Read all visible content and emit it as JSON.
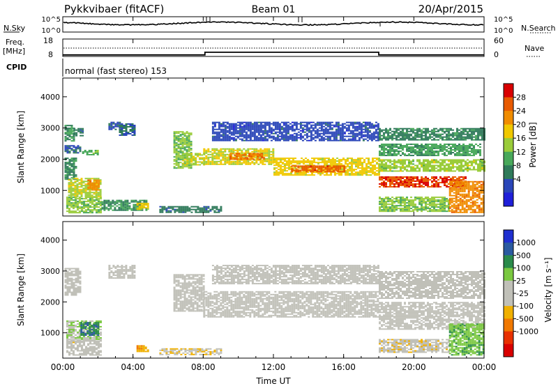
{
  "header": {
    "title": "Pykkvibaer (fitACF)",
    "beam": "Beam 01",
    "date": "20/Apr/2015"
  },
  "noise_panel": {
    "left_label": "N.Sky",
    "right_label": "N.Search",
    "left_ticks": [
      "10^5",
      "10^0"
    ],
    "right_ticks": [
      "10^5",
      "10^0"
    ]
  },
  "freq_panel": {
    "left_label": "Freq.",
    "left_unit": "[MHz]",
    "left_ticks": [
      "18",
      "8"
    ],
    "right_label": "Nave",
    "right_ticks": [
      "60",
      "0"
    ],
    "freq_steps": [
      {
        "t": 0,
        "f": 10.5
      },
      {
        "t": 8.1,
        "f": 12.0
      },
      {
        "t": 18.0,
        "f": 10.5
      }
    ]
  },
  "cpid": {
    "label": "CPID",
    "program": "normal (fast stereo) 153"
  },
  "colors": {
    "power": [
      "#1f1fd9",
      "#2a46b8",
      "#2f7a5a",
      "#48a85a",
      "#9acc3a",
      "#f0c800",
      "#f08c00",
      "#e85a00",
      "#d90000"
    ],
    "velocity": [
      "#1f2fd0",
      "#2a5aa0",
      "#2a8a4a",
      "#7ac840",
      "#c0c0b8",
      "#c0c0b8",
      "#f0b000",
      "#f07800",
      "#e83000",
      "#d90000"
    ]
  },
  "x_axis": {
    "label": "Time UT",
    "ticks": [
      "00:00",
      "04:00",
      "08:00",
      "12:00",
      "16:00",
      "20:00",
      "00:00"
    ]
  },
  "chart_data": [
    {
      "type": "heatmap",
      "title": "Power",
      "ylabel": "Slant Range [km]",
      "xlim": [
        0,
        24
      ],
      "ylim": [
        180,
        4600
      ],
      "y_ticks": [
        "4000",
        "3000",
        "2000",
        "1000"
      ],
      "colorbar": {
        "label": "Power [dB]",
        "ticks": [
          "28",
          "24",
          "20",
          "16",
          "12",
          "8",
          "4"
        ],
        "range": [
          0,
          30
        ]
      },
      "regions": [
        {
          "t0": 0.1,
          "t1": 0.6,
          "r0": 2600,
          "r1": 3100,
          "value": 10
        },
        {
          "t0": 0.6,
          "t1": 1.1,
          "r0": 2750,
          "r1": 3000,
          "value": 8
        },
        {
          "t0": 1.1,
          "t1": 2.0,
          "r0": 2150,
          "r1": 2300,
          "value": 12
        },
        {
          "t0": 0.1,
          "t1": 1.0,
          "r0": 2200,
          "r1": 2450,
          "value": 6
        },
        {
          "t0": 0.1,
          "t1": 0.7,
          "r0": 1350,
          "r1": 2050,
          "value": 9
        },
        {
          "t0": 0.3,
          "t1": 2.2,
          "r0": 800,
          "r1": 1400,
          "value": 16
        },
        {
          "t0": 1.4,
          "t1": 2.0,
          "r0": 1000,
          "r1": 1350,
          "value": 22
        },
        {
          "t0": 0.2,
          "t1": 2.2,
          "r0": 300,
          "r1": 800,
          "value": 14
        },
        {
          "t0": 2.6,
          "t1": 3.2,
          "r0": 2950,
          "r1": 3200,
          "value": 6
        },
        {
          "t0": 3.2,
          "t1": 4.1,
          "r0": 2750,
          "r1": 3150,
          "value": 7
        },
        {
          "t0": 2.2,
          "t1": 4.8,
          "r0": 350,
          "r1": 700,
          "value": 10
        },
        {
          "t0": 4.2,
          "t1": 4.8,
          "r0": 380,
          "r1": 600,
          "value": 18
        },
        {
          "t0": 6.3,
          "t1": 7.3,
          "r0": 1700,
          "r1": 2900,
          "value": 14
        },
        {
          "t0": 6.8,
          "t1": 8.0,
          "r0": 1800,
          "r1": 2200,
          "value": 16
        },
        {
          "t0": 8.0,
          "t1": 12.0,
          "r0": 1850,
          "r1": 2350,
          "value": 17
        },
        {
          "t0": 9.5,
          "t1": 11.5,
          "r0": 2000,
          "r1": 2200,
          "value": 23
        },
        {
          "t0": 12.0,
          "t1": 18.0,
          "r0": 1500,
          "r1": 2050,
          "value": 18
        },
        {
          "t0": 13.0,
          "t1": 16.0,
          "r0": 1600,
          "r1": 1800,
          "value": 25
        },
        {
          "t0": 5.5,
          "t1": 9.0,
          "r0": 300,
          "r1": 500,
          "value": 8
        },
        {
          "t0": 8.5,
          "t1": 18.0,
          "r0": 2600,
          "r1": 3200,
          "value": 5
        },
        {
          "t0": 18.0,
          "t1": 24.0,
          "r0": 2600,
          "r1": 3000,
          "value": 9
        },
        {
          "t0": 18.0,
          "t1": 23.8,
          "r0": 2100,
          "r1": 2500,
          "value": 11
        },
        {
          "t0": 18.0,
          "t1": 24.0,
          "r0": 1600,
          "r1": 2000,
          "value": 15
        },
        {
          "t0": 18.0,
          "t1": 23.0,
          "r0": 1100,
          "r1": 1450,
          "value": 26
        },
        {
          "t0": 18.0,
          "t1": 22.0,
          "r0": 350,
          "r1": 800,
          "value": 14
        },
        {
          "t0": 22.0,
          "t1": 24.0,
          "r0": 300,
          "r1": 1300,
          "value": 22
        }
      ]
    },
    {
      "type": "heatmap",
      "title": "Velocity",
      "ylabel": "Slant Range [km]",
      "xlim": [
        0,
        24
      ],
      "ylim": [
        180,
        4600
      ],
      "y_ticks": [
        "4000",
        "3000",
        "2000",
        "1000"
      ],
      "colorbar": {
        "label": "Velocity [m s⁻¹]",
        "ticks": [
          "1000",
          "500",
          "100",
          "25",
          "-25",
          "-100",
          "-500",
          "-1000"
        ],
        "range": [
          -1200,
          1200
        ]
      },
      "regions": [
        {
          "t0": 0.1,
          "t1": 1.0,
          "r0": 2200,
          "r1": 3100,
          "value": 0
        },
        {
          "t0": 0.2,
          "t1": 2.2,
          "r0": 800,
          "r1": 1400,
          "value": 200
        },
        {
          "t0": 1.0,
          "t1": 2.0,
          "r0": 900,
          "r1": 1350,
          "value": 700
        },
        {
          "t0": 0.2,
          "t1": 2.2,
          "r0": 300,
          "r1": 800,
          "value": -100
        },
        {
          "t0": 2.6,
          "t1": 4.1,
          "r0": 2750,
          "r1": 3200,
          "value": 0
        },
        {
          "t0": 4.2,
          "t1": 4.8,
          "r0": 380,
          "r1": 600,
          "value": -400
        },
        {
          "t0": 6.3,
          "t1": 8.0,
          "r0": 1700,
          "r1": 2900,
          "value": 0
        },
        {
          "t0": 8.0,
          "t1": 18.0,
          "r0": 1500,
          "r1": 2350,
          "value": 0
        },
        {
          "t0": 8.5,
          "t1": 18.0,
          "r0": 2600,
          "r1": 3200,
          "value": 0
        },
        {
          "t0": 5.5,
          "t1": 9.0,
          "r0": 300,
          "r1": 500,
          "value": -200
        },
        {
          "t0": 18.0,
          "t1": 24.0,
          "r0": 2100,
          "r1": 3000,
          "value": 0
        },
        {
          "t0": 18.0,
          "t1": 24.0,
          "r0": 1100,
          "r1": 2000,
          "value": 0
        },
        {
          "t0": 18.0,
          "t1": 22.0,
          "r0": 350,
          "r1": 800,
          "value": -150
        },
        {
          "t0": 22.0,
          "t1": 24.0,
          "r0": 300,
          "r1": 1300,
          "value": 400
        }
      ]
    }
  ]
}
